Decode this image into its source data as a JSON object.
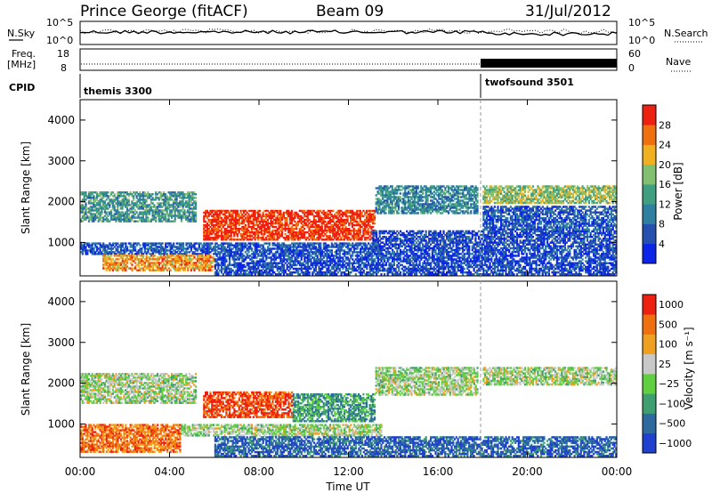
{
  "header": {
    "station": "Prince George (fitACF)",
    "beam": "Beam 09",
    "date": "31/Jul/2012"
  },
  "strip_panels": {
    "nsky": {
      "label": "N.Sky",
      "ticks": [
        "10^5",
        "10^0"
      ]
    },
    "nsearch": {
      "label": "N.Search",
      "ticks": [
        "10^5",
        "10^0"
      ]
    },
    "freq": {
      "label_line1": "Freq.",
      "label_line2": "[MHz]",
      "ticks": [
        "18",
        "8"
      ]
    },
    "nave": {
      "label": "Nave",
      "ticks": [
        "60",
        "0"
      ]
    },
    "cpid": {
      "label": "CPID",
      "segments": [
        {
          "name": "themis 3300",
          "start_hour": 0,
          "end_hour": 18
        },
        {
          "name": "twofsound 3501",
          "start_hour": 18,
          "end_hour": 24
        }
      ]
    }
  },
  "chart_data": [
    {
      "type": "heatmap",
      "name": "Power",
      "xlabel": "",
      "ylabel": "Slant Range [km]",
      "xlim": [
        0,
        24
      ],
      "ylim": [
        180,
        4500
      ],
      "yticks": [
        "1000",
        "2000",
        "3000",
        "4000"
      ],
      "colorbar": {
        "label": "Power [dB]",
        "ticks": [
          "4",
          "8",
          "12",
          "16",
          "20",
          "24",
          "28"
        ],
        "colors": [
          "#0b24e8",
          "#2550b0",
          "#2e7fa0",
          "#3f9f80",
          "#80c070",
          "#f0b020",
          "#f07010",
          "#ee2010"
        ]
      },
      "features": [
        {
          "t0": 0.0,
          "t1": 5.2,
          "r0": 1500,
          "r1": 2250,
          "level": 0.4
        },
        {
          "t0": 5.5,
          "t1": 13.2,
          "r0": 1050,
          "r1": 1800,
          "level": 0.95
        },
        {
          "t0": 13.2,
          "t1": 17.8,
          "r0": 1700,
          "r1": 2400,
          "level": 0.35
        },
        {
          "t0": 18.0,
          "t1": 24.0,
          "r0": 1950,
          "r1": 2400,
          "level": 0.55
        },
        {
          "t0": 0.0,
          "t1": 13.5,
          "r0": 700,
          "r1": 1000,
          "level": 0.2
        },
        {
          "t0": 1.0,
          "t1": 6.0,
          "r0": 300,
          "r1": 700,
          "level": 0.75
        },
        {
          "t0": 6.0,
          "t1": 24.0,
          "r0": 200,
          "r1": 700,
          "level": 0.15
        },
        {
          "t0": 13.0,
          "t1": 24.0,
          "r0": 700,
          "r1": 1300,
          "level": 0.15
        },
        {
          "t0": 18.0,
          "t1": 24.0,
          "r0": 1300,
          "r1": 1900,
          "level": 0.2
        }
      ]
    },
    {
      "type": "heatmap",
      "name": "Velocity",
      "xlabel": "Time UT",
      "ylabel": "Slant Range [km]",
      "xlim": [
        0,
        24
      ],
      "ylim": [
        180,
        4500
      ],
      "xticks": [
        "00:00",
        "04:00",
        "08:00",
        "12:00",
        "16:00",
        "20:00",
        "00:00"
      ],
      "yticks": [
        "1000",
        "2000",
        "3000",
        "4000"
      ],
      "colorbar": {
        "label": "Velocity [m s⁻¹]",
        "ticks": [
          "1000",
          "500",
          "100",
          "25",
          "−25",
          "−100",
          "−500",
          "−1000"
        ],
        "colors": [
          "#2040d0",
          "#2e6aa0",
          "#3f9f70",
          "#60d040",
          "#c8c8c8",
          "#f0a020",
          "#f07010",
          "#ee2010"
        ]
      },
      "features": [
        {
          "t0": 0.0,
          "t1": 5.2,
          "r0": 1500,
          "r1": 2250,
          "level": 0.5
        },
        {
          "t0": 5.5,
          "t1": 9.5,
          "r0": 1150,
          "r1": 1800,
          "level": 0.9
        },
        {
          "t0": 9.5,
          "t1": 13.2,
          "r0": 1050,
          "r1": 1750,
          "level": 0.3
        },
        {
          "t0": 13.2,
          "t1": 17.8,
          "r0": 1700,
          "r1": 2400,
          "level": 0.5
        },
        {
          "t0": 18.0,
          "t1": 24.0,
          "r0": 1950,
          "r1": 2400,
          "level": 0.5
        },
        {
          "t0": 0.0,
          "t1": 4.5,
          "r0": 300,
          "r1": 1000,
          "level": 0.8
        },
        {
          "t0": 4.5,
          "t1": 13.5,
          "r0": 700,
          "r1": 1000,
          "level": 0.5
        },
        {
          "t0": 6.0,
          "t1": 24.0,
          "r0": 200,
          "r1": 700,
          "level": 0.15
        }
      ]
    }
  ]
}
